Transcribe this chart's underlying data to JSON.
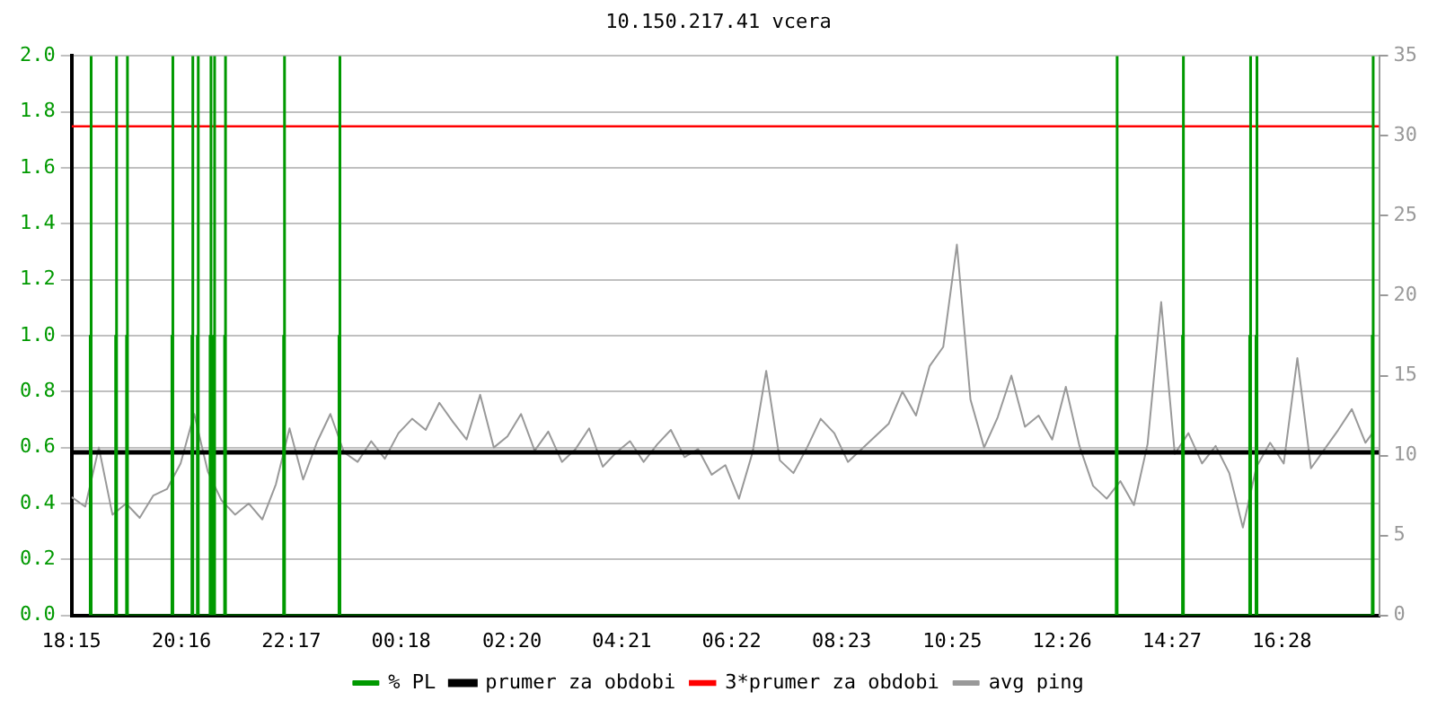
{
  "chart_data": {
    "type": "line",
    "title": "10.150.217.41 vcera",
    "xlim": [
      "--01-01T18:15",
      "--01-02T18:15"
    ],
    "xticks": [
      {
        "value": "--01-01T18:15",
        "label": "18:15"
      },
      {
        "value": "--01-01T20:16",
        "label": "20:16"
      },
      {
        "value": "--01-01T22:17",
        "label": "22:17"
      },
      {
        "value": "--01-02T00:18",
        "label": "00:18"
      },
      {
        "value": "--01-02T02:20",
        "label": "02:20"
      },
      {
        "value": "--01-02T04:21",
        "label": "04:21"
      },
      {
        "value": "--01-02T06:22",
        "label": "06:22"
      },
      {
        "value": "--01-02T08:23",
        "label": "08:23"
      },
      {
        "value": "--01-02T10:25",
        "label": "10:25"
      },
      {
        "value": "--01-02T12:26",
        "label": "12:26"
      },
      {
        "value": "--01-02T14:27",
        "label": "14:27"
      },
      {
        "value": "--01-02T16:28",
        "label": "16:28"
      }
    ],
    "ylim": [
      0,
      2
    ],
    "yticks": [
      {
        "value": 0,
        "label": "0.0"
      },
      0.2,
      0.4,
      0.6,
      0.8,
      {
        "value": 1,
        "label": "1.0"
      },
      1.2,
      1.4,
      1.6,
      1.8,
      {
        "value": 2,
        "label": "2.0"
      }
    ],
    "y2lim": [
      0,
      35
    ],
    "y2ticks": [
      0,
      5,
      10,
      15,
      20,
      25,
      30,
      35
    ],
    "grid": "y",
    "legend": "bottom",
    "marker": "none",
    "series": [
      {
        "name": "% PL",
        "type": "step",
        "color": "#009900",
        "x": [
          "--01-01T18:34",
          "--01-01T18:35",
          "--01-01T18:36",
          "--01-01T18:37",
          "--01-01T19:02",
          "--01-01T19:03",
          "--01-01T19:04",
          "--01-01T19:05",
          "--01-01T19:14",
          "--01-01T19:15",
          "--01-01T19:16",
          "--01-01T19:17",
          "--01-01T20:04",
          "--01-01T20:05",
          "--01-01T20:06",
          "--01-01T20:07",
          "--01-01T20:26",
          "--01-01T20:27",
          "--01-01T20:28",
          "--01-01T20:29",
          "--01-01T20:32",
          "--01-01T20:33",
          "--01-01T20:34",
          "--01-01T20:35",
          "--01-01T20:46",
          "--01-01T20:47",
          "--01-01T20:48",
          "--01-01T20:49",
          "--01-01T20:50",
          "--01-01T20:51",
          "--01-01T20:52",
          "--01-01T20:53",
          "--01-01T21:02",
          "--01-01T21:03",
          "--01-01T21:04",
          "--01-01T21:05",
          "--01-01T22:07",
          "--01-01T22:08",
          "--01-01T22:09",
          "--01-01T22:10",
          "--01-01T23:08",
          "--01-01T23:09",
          "--01-01T23:10",
          "--01-01T23:11",
          "--01-02T13:24",
          "--01-02T13:25",
          "--01-02T13:26",
          "--01-02T13:27",
          "--01-02T14:37",
          "--01-02T14:38",
          "--01-02T14:39",
          "--01-02T14:40",
          "--01-02T15:51",
          "--01-02T15:52",
          "--01-02T15:53",
          "--01-02T15:54",
          "--01-02T15:58",
          "--01-02T15:59",
          "--01-02T16:00",
          "--01-02T16:01",
          "--01-02T18:06",
          "--01-02T18:07",
          "--01-02T18:08",
          "--01-02T18:09"
        ],
        "values": [
          0,
          1,
          2,
          0,
          0,
          1,
          2,
          0,
          0,
          1,
          2,
          0,
          0,
          1,
          2,
          0,
          0,
          1,
          2,
          0,
          0,
          1,
          2,
          0,
          0,
          1,
          2,
          0,
          0,
          1,
          2,
          0,
          0,
          1,
          2,
          0,
          0,
          1,
          2,
          0,
          0,
          1,
          2,
          0,
          0,
          1,
          2,
          0,
          0,
          1,
          2,
          0,
          0,
          1,
          2,
          0,
          0,
          1,
          2,
          0,
          0,
          1,
          2,
          0
        ]
      },
      {
        "name": "avg ping",
        "axis": "y2",
        "color": "#999999",
        "x": [
          "--01-01T18:15",
          "--01-01T18:30",
          "--01-01T18:45",
          "--01-01T19:00",
          "--01-01T19:15",
          "--01-01T19:30",
          "--01-01T19:45",
          "--01-01T20:00",
          "--01-01T20:15",
          "--01-01T20:30",
          "--01-01T20:45",
          "--01-01T21:00",
          "--01-01T21:15",
          "--01-01T21:30",
          "--01-01T21:45",
          "--01-01T22:00",
          "--01-01T22:15",
          "--01-01T22:30",
          "--01-01T22:45",
          "--01-01T23:00",
          "--01-01T23:15",
          "--01-01T23:30",
          "--01-01T23:45",
          "--01-02T00:00",
          "--01-02T00:15",
          "--01-02T00:30",
          "--01-02T00:45",
          "--01-02T01:00",
          "--01-02T01:15",
          "--01-02T01:30",
          "--01-02T01:45",
          "--01-02T02:00",
          "--01-02T02:15",
          "--01-02T02:30",
          "--01-02T02:45",
          "--01-02T03:00",
          "--01-02T03:15",
          "--01-02T03:30",
          "--01-02T03:45",
          "--01-02T04:00",
          "--01-02T04:15",
          "--01-02T04:30",
          "--01-02T04:45",
          "--01-02T05:00",
          "--01-02T05:15",
          "--01-02T05:30",
          "--01-02T05:45",
          "--01-02T06:00",
          "--01-02T06:15",
          "--01-02T06:30",
          "--01-02T06:45",
          "--01-02T07:00",
          "--01-02T07:15",
          "--01-02T07:30",
          "--01-02T07:45",
          "--01-02T08:00",
          "--01-02T08:15",
          "--01-02T08:30",
          "--01-02T08:45",
          "--01-02T09:00",
          "--01-02T09:15",
          "--01-02T09:30",
          "--01-02T09:45",
          "--01-02T10:00",
          "--01-02T10:15",
          "--01-02T10:30",
          "--01-02T10:45",
          "--01-02T11:00",
          "--01-02T11:15",
          "--01-02T11:30",
          "--01-02T11:45",
          "--01-02T12:00",
          "--01-02T12:15",
          "--01-02T12:30",
          "--01-02T12:45",
          "--01-02T13:00",
          "--01-02T13:15",
          "--01-02T13:30",
          "--01-02T13:45",
          "--01-02T14:00",
          "--01-02T14:15",
          "--01-02T14:30",
          "--01-02T14:45",
          "--01-02T15:00",
          "--01-02T15:15",
          "--01-02T15:30",
          "--01-02T15:45",
          "--01-02T16:00",
          "--01-02T16:15",
          "--01-02T16:30",
          "--01-02T16:45",
          "--01-02T17:00",
          "--01-02T17:15",
          "--01-02T17:30",
          "--01-02T17:45",
          "--01-02T18:00",
          "--01-02T18:09"
        ],
        "values": [
          7.4,
          6.8,
          10.5,
          6.3,
          7.0,
          6.1,
          7.5,
          7.9,
          9.5,
          12.6,
          9.0,
          7.2,
          6.3,
          7.0,
          6.0,
          8.2,
          11.7,
          8.5,
          10.8,
          12.6,
          10.2,
          9.6,
          10.9,
          9.8,
          11.4,
          12.3,
          11.6,
          13.3,
          12.1,
          11.0,
          13.8,
          10.5,
          11.2,
          12.6,
          10.3,
          11.5,
          9.6,
          10.4,
          11.7,
          9.3,
          10.2,
          10.9,
          9.6,
          10.7,
          11.6,
          9.9,
          10.4,
          8.8,
          9.4,
          7.3,
          10.2,
          15.3,
          9.7,
          8.9,
          10.5,
          12.3,
          11.4,
          9.6,
          10.4,
          11.2,
          12.0,
          14.0,
          12.5,
          15.6,
          16.8,
          23.2,
          13.5,
          10.5,
          12.4,
          15.0,
          11.8,
          12.5,
          11.0,
          14.3,
          10.6,
          8.1,
          7.3,
          8.4,
          6.9,
          10.7,
          19.6,
          10.1,
          11.4,
          9.5,
          10.6,
          8.9,
          5.5,
          9.3,
          10.8,
          9.5,
          16.1,
          9.2,
          10.4,
          11.6,
          12.9,
          10.8,
          11.5
        ]
      }
    ],
    "ref_lines": [
      {
        "axis": "y2",
        "value": 10.2,
        "label": "prumer za obdobi",
        "color": "#000000"
      },
      {
        "axis": "y2",
        "value": 30.6,
        "label": "3*prumer za obdobi",
        "color": "#ff0000"
      }
    ]
  }
}
